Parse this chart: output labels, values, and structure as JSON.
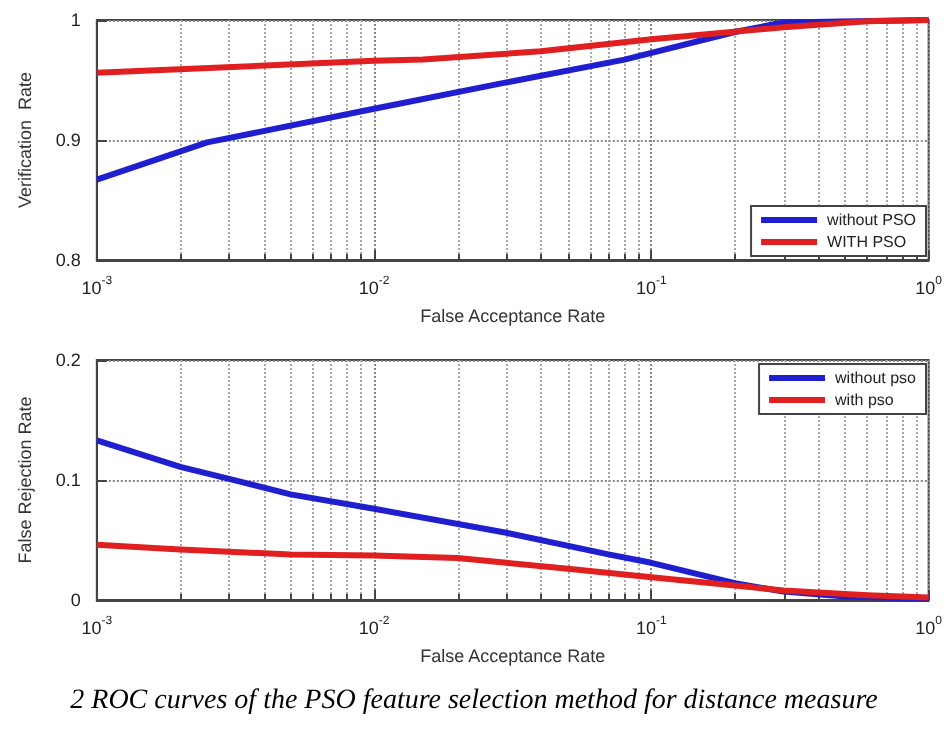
{
  "chart_data": [
    {
      "type": "line",
      "xlabel": "False Acceptance Rate",
      "ylabel": "Verification  Rate",
      "log": "x",
      "grid": true,
      "legend": "bottom right",
      "marker": "none",
      "line_style": "solid",
      "xlim": [
        0.001,
        1
      ],
      "xticks": [
        {
          "value": 0.001,
          "label": "10$^{-3}$"
        },
        {
          "value": 0.01,
          "label": "10$^{-2}$"
        },
        {
          "value": 0.1,
          "label": "10$^{-1}$"
        },
        {
          "value": 1,
          "label": "10$^{0}$"
        }
      ],
      "ylim": [
        0.8,
        1
      ],
      "yticks": [
        0.8,
        0.9,
        1
      ],
      "series": [
        {
          "name": "without PSO",
          "color": "#1f1fd0",
          "x": [
            0.001,
            0.0025,
            0.01,
            0.03,
            0.08,
            0.2,
            0.3,
            1
          ],
          "values": [
            0.867,
            0.898,
            0.926,
            0.948,
            0.967,
            0.99,
            0.998,
            1
          ]
        },
        {
          "name": "WITH PSO",
          "color": "#e02020",
          "x": [
            0.001,
            0.01,
            0.015,
            0.04,
            0.1,
            0.3,
            0.6,
            1
          ],
          "values": [
            0.956,
            0.966,
            0.967,
            0.974,
            0.984,
            0.994,
            0.999,
            1
          ]
        }
      ]
    },
    {
      "type": "line",
      "xlabel": "False Acceptance Rate",
      "ylabel": "False Rejection Rate",
      "log": "x",
      "grid": true,
      "legend": "top right",
      "marker": "none",
      "line_style": "solid",
      "xlim": [
        0.001,
        1
      ],
      "xticks": [
        {
          "value": 0.001,
          "label": "10$^{-3}$"
        },
        {
          "value": 0.01,
          "label": "10$^{-2}$"
        },
        {
          "value": 0.1,
          "label": "10$^{-1}$"
        },
        {
          "value": 1,
          "label": "10$^{0}$"
        }
      ],
      "ylim": [
        0,
        0.2
      ],
      "yticks": [
        0,
        0.1,
        0.2
      ],
      "annotations": [
        "2   ROC curves of the PSO feature selection method for distance measure"
      ],
      "series": [
        {
          "name": "without pso",
          "color": "#1f1fd0",
          "x": [
            0.001,
            0.002,
            0.003,
            0.005,
            0.01,
            0.03,
            0.07,
            0.1,
            0.2,
            0.3,
            0.5,
            1
          ],
          "values": [
            0.133,
            0.111,
            0.101,
            0.088,
            0.076,
            0.056,
            0.038,
            0.031,
            0.014,
            0.007,
            0.003,
            0.001
          ]
        },
        {
          "name": "with pso",
          "color": "#e02020",
          "x": [
            0.001,
            0.002,
            0.005,
            0.01,
            0.02,
            0.03,
            0.05,
            0.1,
            0.2,
            0.3,
            0.6,
            1
          ],
          "values": [
            0.046,
            0.042,
            0.038,
            0.037,
            0.035,
            0.031,
            0.026,
            0.019,
            0.012,
            0.008,
            0.004,
            0.002
          ]
        }
      ]
    }
  ]
}
